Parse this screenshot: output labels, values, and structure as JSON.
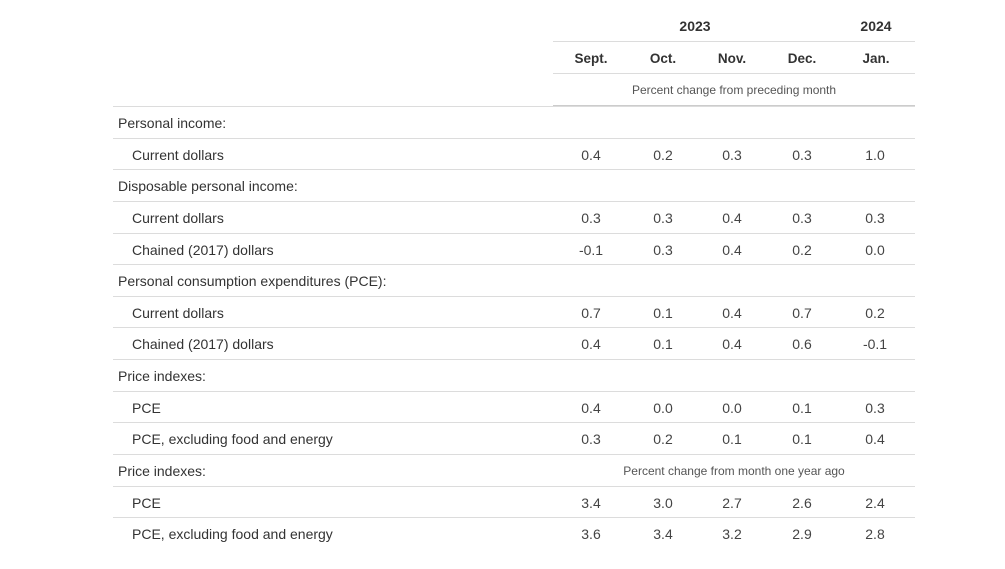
{
  "header": {
    "years": [
      {
        "label": "2023"
      },
      {
        "label": "2024"
      }
    ],
    "months": [
      "Sept.",
      "Oct.",
      "Nov.",
      "Dec.",
      "Jan."
    ],
    "subheader_monthly": "Percent change from preceding month",
    "subheader_yearly": "Percent change from month one year ago"
  },
  "rows": [
    {
      "label": "Personal income:",
      "indent": false,
      "values": []
    },
    {
      "label": "Current dollars",
      "indent": true,
      "values": [
        "0.4",
        "0.2",
        "0.3",
        "0.3",
        "1.0"
      ]
    },
    {
      "label": "Disposable personal income:",
      "indent": false,
      "values": []
    },
    {
      "label": "Current dollars",
      "indent": true,
      "values": [
        "0.3",
        "0.3",
        "0.4",
        "0.3",
        "0.3"
      ]
    },
    {
      "label": "Chained (2017) dollars",
      "indent": true,
      "values": [
        "-0.1",
        "0.3",
        "0.4",
        "0.2",
        "0.0"
      ]
    },
    {
      "label": "Personal consumption expenditures (PCE):",
      "indent": false,
      "values": []
    },
    {
      "label": "Current dollars",
      "indent": true,
      "values": [
        "0.7",
        "0.1",
        "0.4",
        "0.7",
        "0.2"
      ]
    },
    {
      "label": "Chained (2017) dollars",
      "indent": true,
      "values": [
        "0.4",
        "0.1",
        "0.4",
        "0.6",
        "-0.1"
      ]
    },
    {
      "label": "Price indexes:",
      "indent": false,
      "values": []
    },
    {
      "label": "PCE",
      "indent": true,
      "values": [
        "0.4",
        "0.0",
        "0.0",
        "0.1",
        "0.3"
      ]
    },
    {
      "label": "PCE, excluding food and energy",
      "indent": true,
      "values": [
        "0.3",
        "0.2",
        "0.1",
        "0.1",
        "0.4"
      ]
    },
    {
      "label": "Price indexes:",
      "indent": false,
      "values": []
    },
    {
      "label": "PCE",
      "indent": true,
      "values": [
        "3.4",
        "3.0",
        "2.7",
        "2.6",
        "2.4"
      ]
    },
    {
      "label": "PCE, excluding food and energy",
      "indent": true,
      "values": [
        "3.6",
        "3.4",
        "3.2",
        "2.9",
        "2.8"
      ]
    }
  ]
}
